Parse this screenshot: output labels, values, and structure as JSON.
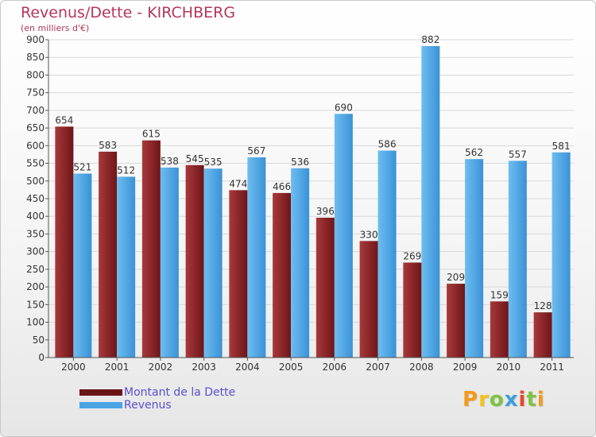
{
  "header": {
    "title": "Revenus/Dette - KIRCHBERG",
    "subtitle": "(en milliers d'€)"
  },
  "legend": {
    "items": [
      {
        "label": "Montant de la Dette",
        "color": "#7a1b1e"
      },
      {
        "label": "Revenus",
        "color": "#4aa3e3"
      }
    ]
  },
  "logo": {
    "letters": [
      "P",
      "r",
      "o",
      "x",
      "i",
      "t",
      "i"
    ],
    "colors": [
      "#f29a1d",
      "#f2c21d",
      "#7fc241",
      "#3aa0dc",
      "#e8462c",
      "#7fc241",
      "#f29a1d"
    ]
  },
  "chart_data": {
    "type": "bar",
    "title": "Revenus/Dette - KIRCHBERG",
    "ylabel": "(en milliers d'€)",
    "xlabel": "",
    "categories": [
      "2000",
      "2001",
      "2002",
      "2003",
      "2004",
      "2005",
      "2006",
      "2007",
      "2008",
      "2009",
      "2010",
      "2011"
    ],
    "series": [
      {
        "name": "Montant de la Dette",
        "color": "#7a1b1e",
        "values": [
          654,
          583,
          615,
          545,
          474,
          466,
          396,
          330,
          269,
          209,
          159,
          128
        ]
      },
      {
        "name": "Revenus",
        "color": "#4aa3e3",
        "values": [
          521,
          512,
          538,
          535,
          567,
          536,
          690,
          586,
          882,
          562,
          557,
          581
        ]
      }
    ],
    "ylim": [
      0,
      900
    ],
    "yticks": [
      0,
      50,
      100,
      150,
      200,
      250,
      300,
      350,
      400,
      450,
      500,
      550,
      600,
      650,
      700,
      750,
      800,
      850,
      900
    ],
    "grid": true,
    "legend_position": "bottom-left"
  }
}
